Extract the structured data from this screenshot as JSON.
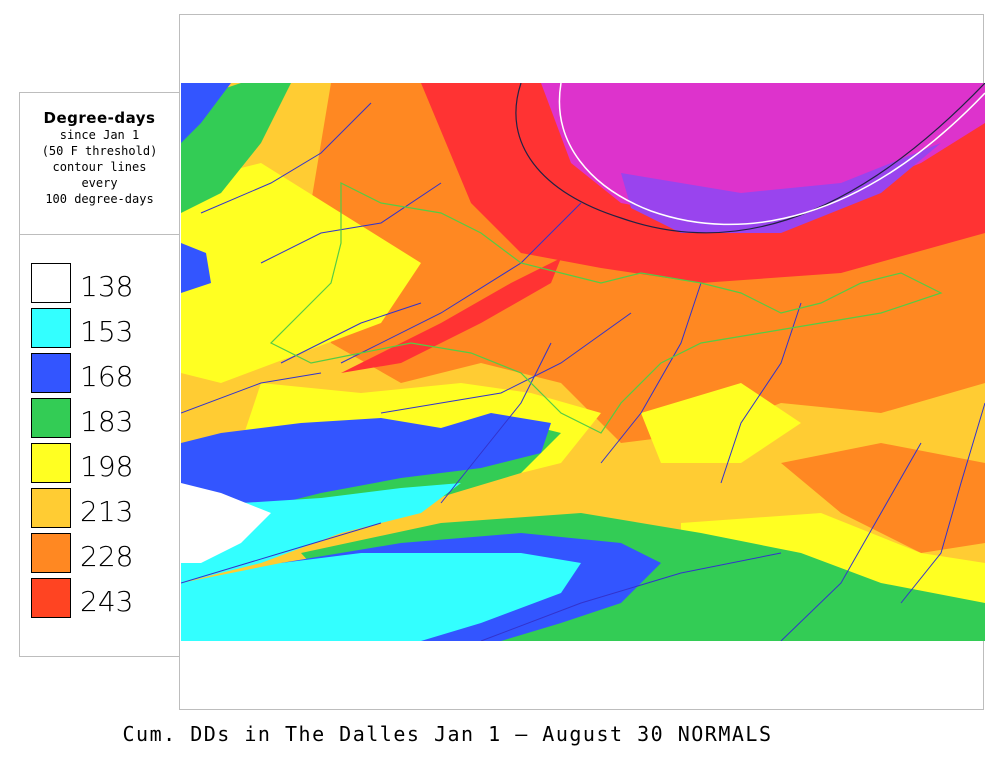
{
  "legend": {
    "title": "Degree-days",
    "subtitle_lines": [
      "since Jan 1",
      "(50 F threshold)",
      "contour lines",
      "every",
      "100 degree-days"
    ],
    "items": [
      {
        "value": "138",
        "color": "#ffffff"
      },
      {
        "value": "153",
        "color": "#33ffff"
      },
      {
        "value": "168",
        "color": "#3355ff"
      },
      {
        "value": "183",
        "color": "#33cc55"
      },
      {
        "value": "198",
        "color": "#ffff22"
      },
      {
        "value": "213",
        "color": "#ffcc33"
      },
      {
        "value": "228",
        "color": "#ff8822"
      },
      {
        "value": "243",
        "color": "#ff4422"
      }
    ]
  },
  "map": {
    "extra_colors": {
      "very_high": "#ff3333",
      "hot": "#dd33cc",
      "hottest": "#9944ee",
      "river_line": "#3333cc",
      "boundary_line": "#55cc44"
    }
  },
  "caption": "Cum. DDs in The Dalles Jan 1 — August 30 NORMALS"
}
